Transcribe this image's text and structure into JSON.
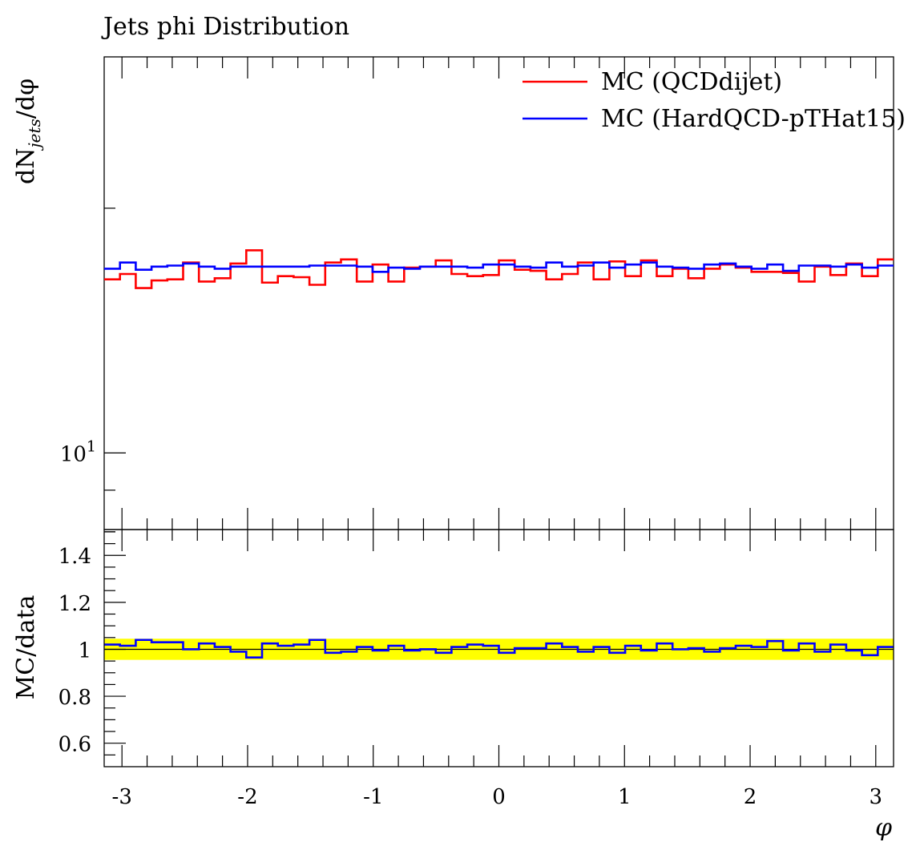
{
  "chart_data": [
    {
      "panel": "main",
      "type": "line",
      "title": "Jets phi Distribution",
      "xlabel": "",
      "ylabel": "dN_jets/dφ",
      "yscale": "log",
      "ylim": [
        8.05,
        30.7
      ],
      "xlim": [
        -3.1416,
        3.1416
      ],
      "n_bins": 50,
      "y_tick_labels": [
        {
          "value": 10,
          "label": "10",
          "exponent": "1"
        }
      ],
      "legend": {
        "placement": "top-right"
      },
      "series": [
        {
          "name": "MC (QCDdijet)",
          "color": "#ff0000",
          "values": [
            16.35,
            16.6,
            15.95,
            16.3,
            16.35,
            17.15,
            16.25,
            16.4,
            17.1,
            17.75,
            16.2,
            16.5,
            16.45,
            16.1,
            17.15,
            17.3,
            16.25,
            17.05,
            16.25,
            16.9,
            16.95,
            17.25,
            16.6,
            16.5,
            16.55,
            17.25,
            16.8,
            16.75,
            16.35,
            16.6,
            17.15,
            16.35,
            17.2,
            16.5,
            17.25,
            16.5,
            16.85,
            16.4,
            16.85,
            17.05,
            16.9,
            16.7,
            16.7,
            16.65,
            16.25,
            16.95,
            16.55,
            17.1,
            16.5,
            17.3
          ]
        },
        {
          "name": "MC (HardQCD-pTHat15)",
          "color": "#0000ff",
          "values": [
            16.85,
            17.15,
            16.8,
            16.95,
            17.0,
            17.1,
            16.95,
            16.85,
            16.95,
            16.95,
            16.95,
            16.95,
            16.95,
            17.0,
            17.0,
            17.0,
            16.95,
            16.7,
            16.9,
            16.85,
            16.95,
            16.95,
            16.95,
            16.9,
            17.05,
            17.05,
            16.95,
            16.9,
            17.15,
            16.95,
            17.0,
            17.15,
            16.9,
            17.05,
            17.15,
            16.95,
            16.9,
            16.85,
            17.05,
            17.1,
            16.95,
            16.85,
            17.05,
            16.75,
            17.0,
            17.0,
            16.95,
            17.05,
            16.9,
            17.0
          ]
        }
      ]
    },
    {
      "panel": "ratio",
      "type": "line",
      "xlabel": "φ",
      "ylabel": "MC/data",
      "ylim": [
        0.5,
        1.51
      ],
      "xlim": [
        -3.1416,
        3.1416
      ],
      "x_ticks": [
        -3,
        -2,
        -1,
        0,
        1,
        2,
        3
      ],
      "x_tick_labels": [
        "-3",
        "-2",
        "-1",
        "0",
        "1",
        "2",
        "3"
      ],
      "y_ticks": [
        0.6,
        0.8,
        1.0,
        1.2,
        1.4
      ],
      "y_tick_labels": [
        "0.6",
        "0.8",
        "1",
        "1.2",
        "1.4"
      ],
      "reference_line": 1.0,
      "uncertainty_band": {
        "low": 0.955,
        "high": 1.045,
        "color": "#ffff00"
      },
      "series": [
        {
          "name": "MC (HardQCD-pTHat15)",
          "color": "#0000ff",
          "values": [
            1.02,
            1.015,
            1.04,
            1.03,
            1.03,
            1.0,
            1.025,
            1.01,
            0.99,
            0.965,
            1.025,
            1.015,
            1.02,
            1.04,
            0.985,
            0.99,
            1.01,
            0.995,
            1.015,
            0.995,
            1.0,
            0.985,
            1.01,
            1.02,
            1.015,
            0.985,
            1.005,
            1.005,
            1.025,
            1.01,
            0.99,
            1.01,
            0.985,
            1.015,
            0.995,
            1.025,
            1.0,
            1.005,
            0.99,
            1.005,
            1.015,
            1.01,
            1.035,
            0.995,
            1.025,
            0.99,
            1.02,
            0.995,
            0.975,
            1.01
          ]
        }
      ]
    }
  ]
}
